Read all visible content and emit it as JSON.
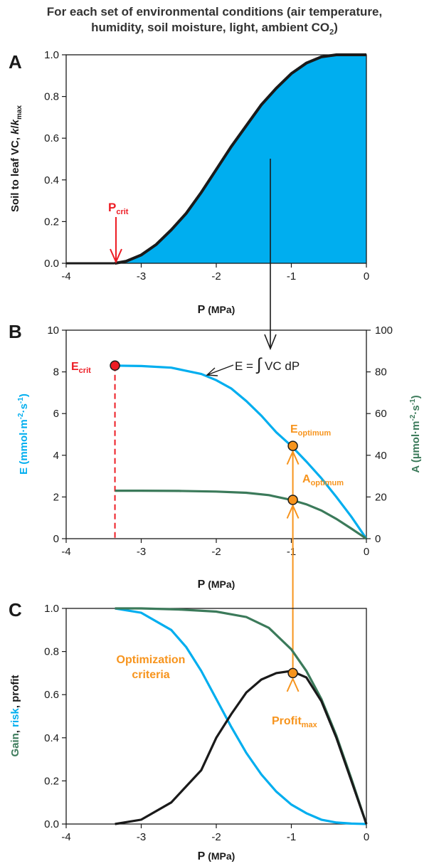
{
  "figure": {
    "header_line1": "For each set of environmental conditions (air temperature,",
    "header_line2_main": "humidity, soil moisture, light, ambient CO",
    "header_line2_sub": "2",
    "header_line2_end": ")"
  },
  "colors": {
    "blue": "#00aeef",
    "green": "#3b7a5a",
    "black": "#1a1a1a",
    "red": "#ed1c24",
    "orange": "#f7941d"
  },
  "chart_data": [
    {
      "panel": "A",
      "type": "area",
      "x_ticks": [
        "-4",
        "-3",
        "-2",
        "-1",
        "0"
      ],
      "y_ticks": [
        "0.0",
        "0.2",
        "0.4",
        "0.6",
        "0.8",
        "1.0"
      ],
      "xlim": [
        -4,
        0
      ],
      "ylim": [
        0,
        1
      ],
      "xlabel_main": "P",
      "xlabel_rest": " (MPa)",
      "ylabel_main": "Soil to leaf VC, ",
      "ylabel_k": "k",
      "ylabel_slash": "/",
      "ylabel_k2": "k",
      "ylabel_sub": "max",
      "series": [
        {
          "values_x": [
            -3.35,
            -3.2,
            -3.0,
            -2.8,
            -2.6,
            -2.4,
            -2.2,
            -2.0,
            -1.8,
            -1.6,
            -1.4,
            -1.2,
            -1.0,
            -0.8,
            -0.6,
            -0.4,
            -0.2,
            0.0
          ],
          "values_y": [
            0.0,
            0.01,
            0.04,
            0.09,
            0.16,
            0.24,
            0.34,
            0.45,
            0.56,
            0.66,
            0.76,
            0.84,
            0.91,
            0.96,
            0.99,
            1.0,
            1.0,
            1.0
          ]
        }
      ],
      "annotations": {
        "pcrit_main": "P",
        "pcrit_sub": "crit",
        "pcrit_x": -3.35
      }
    },
    {
      "panel": "B",
      "type": "line",
      "x_ticks": [
        "-4",
        "-3",
        "-2",
        "-1",
        "0"
      ],
      "y_ticks_left": [
        "0",
        "2",
        "4",
        "6",
        "8",
        "10"
      ],
      "y_ticks_right": [
        "0",
        "20",
        "40",
        "60",
        "80",
        "100"
      ],
      "xlim": [
        -4,
        0
      ],
      "ylim_left": [
        0,
        10
      ],
      "ylim_right": [
        0,
        100
      ],
      "xlabel_main": "P",
      "xlabel_rest": " (MPa)",
      "ylabel_left": "E (mmol·m",
      "ylabel_left_sup1": "-2",
      "ylabel_left_mid": "·s",
      "ylabel_left_sup2": "-1",
      "ylabel_left_end": ")",
      "ylabel_right": "A (µmol·m",
      "ylabel_right_sup1": "-2",
      "ylabel_right_mid": "·s",
      "ylabel_right_sup2": "-1",
      "ylabel_right_end": ")",
      "series": [
        {
          "axis": "left",
          "values_x": [
            -3.35,
            -3.0,
            -2.6,
            -2.2,
            -2.0,
            -1.8,
            -1.6,
            -1.4,
            -1.2,
            -1.0,
            -0.8,
            -0.6,
            -0.4,
            -0.2,
            0.0
          ],
          "values_y": [
            8.3,
            8.28,
            8.2,
            7.9,
            7.6,
            7.2,
            6.6,
            5.9,
            5.1,
            4.45,
            3.7,
            2.9,
            2.0,
            1.05,
            0.0
          ]
        },
        {
          "axis": "right",
          "values_x": [
            -3.35,
            -3.0,
            -2.5,
            -2.0,
            -1.6,
            -1.3,
            -1.0,
            -0.8,
            -0.6,
            -0.4,
            -0.2,
            0.0
          ],
          "values_y": [
            23.0,
            23.0,
            22.9,
            22.6,
            22.0,
            20.9,
            18.6,
            16.5,
            13.5,
            9.5,
            4.8,
            0.0
          ]
        }
      ],
      "annotations": {
        "ecrit_main": "E",
        "ecrit_sub": "crit",
        "ecrit_point": [
          -3.35,
          8.3
        ],
        "integral_label_pre": "E = ",
        "integral_sign": "∫",
        "integral_label_post": " VC dP",
        "eopt_main": "E",
        "eopt_sub": "optimum",
        "eopt_point": [
          -0.98,
          4.45
        ],
        "aopt_main": "A",
        "aopt_sub": "optimum",
        "aopt_point": [
          -0.98,
          18.6
        ]
      }
    },
    {
      "panel": "C",
      "type": "line",
      "x_ticks": [
        "-4",
        "-3",
        "-2",
        "-1",
        "0"
      ],
      "y_ticks": [
        "0.0",
        "0.2",
        "0.4",
        "0.6",
        "0.8",
        "1.0"
      ],
      "xlim": [
        -4,
        0
      ],
      "ylim": [
        0,
        1
      ],
      "xlabel_main": "P",
      "xlabel_rest": " (MPa)",
      "ylabel_gain": "Gain",
      "ylabel_sep1": ", ",
      "ylabel_risk": "risk",
      "ylabel_sep2": ", ",
      "ylabel_profit": "profit",
      "series": [
        {
          "name": "Gain",
          "values_x": [
            -3.35,
            -3.0,
            -2.5,
            -2.0,
            -1.6,
            -1.3,
            -1.0,
            -0.8,
            -0.6,
            -0.4,
            -0.2,
            0.0
          ],
          "values_y": [
            1.0,
            1.0,
            0.995,
            0.985,
            0.96,
            0.91,
            0.81,
            0.71,
            0.58,
            0.41,
            0.21,
            0.0
          ]
        },
        {
          "name": "risk",
          "values_x": [
            -3.35,
            -3.0,
            -2.6,
            -2.4,
            -2.2,
            -2.0,
            -1.8,
            -1.6,
            -1.4,
            -1.2,
            -1.0,
            -0.8,
            -0.6,
            -0.4,
            -0.2,
            0.0
          ],
          "values_y": [
            1.0,
            0.98,
            0.9,
            0.82,
            0.71,
            0.58,
            0.45,
            0.33,
            0.23,
            0.15,
            0.09,
            0.05,
            0.02,
            0.007,
            0.002,
            0.0
          ]
        },
        {
          "name": "profit",
          "values_x": [
            -3.35,
            -3.0,
            -2.6,
            -2.2,
            -2.0,
            -1.8,
            -1.6,
            -1.4,
            -1.2,
            -1.0,
            -0.8,
            -0.6,
            -0.4,
            -0.2,
            0.0
          ],
          "values_y": [
            0.0,
            0.02,
            0.1,
            0.25,
            0.4,
            0.51,
            0.61,
            0.67,
            0.7,
            0.71,
            0.68,
            0.57,
            0.4,
            0.2,
            0.0
          ]
        }
      ],
      "annotations": {
        "opt_line1": "Optimization",
        "opt_line2": "criteria",
        "profit_main": "Profit",
        "profit_sub": "max",
        "profit_point": [
          -0.98,
          0.7
        ]
      }
    }
  ],
  "panel_labels": [
    "A",
    "B",
    "C"
  ]
}
